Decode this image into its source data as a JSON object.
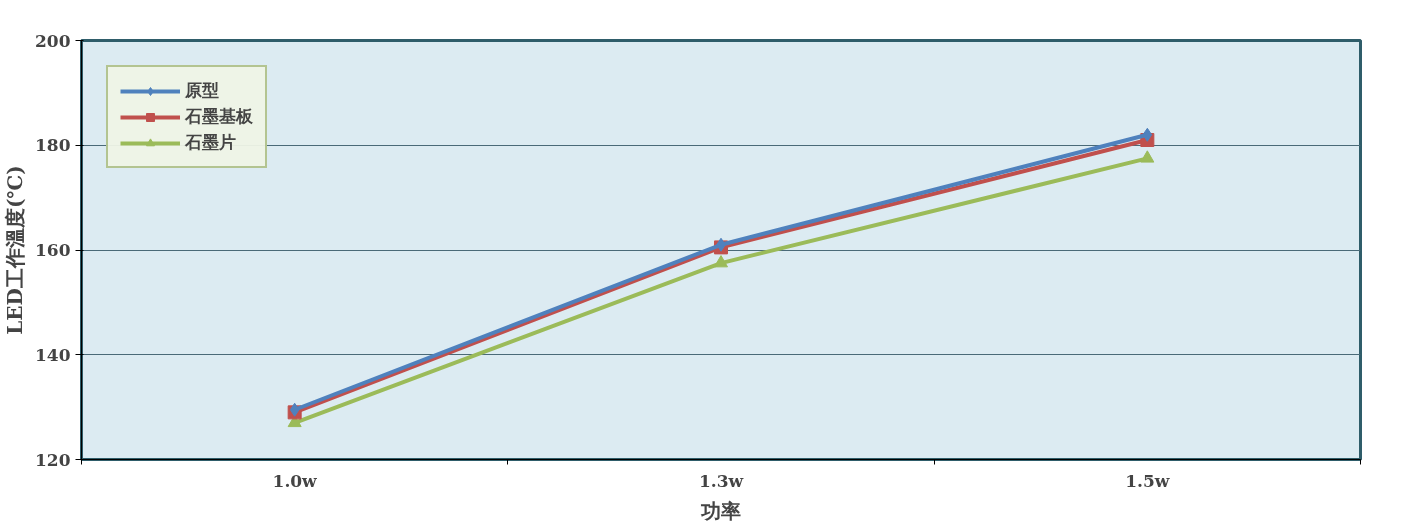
{
  "chart_data": {
    "type": "line",
    "xlabel": "功率",
    "ylabel": "LED工作溫度(℃)",
    "categories": [
      "1.0w",
      "1.3w",
      "1.5w"
    ],
    "ylim": [
      120,
      200
    ],
    "yticks": [
      120,
      140,
      160,
      180,
      200
    ],
    "grid": "y",
    "legend": "top left",
    "line_style": "solid",
    "series": [
      {
        "name": "原型",
        "color": "#4f81bd",
        "marker": "diamond",
        "values": [
          129.5,
          161,
          182
        ]
      },
      {
        "name": "石墨基板",
        "color": "#c0504d",
        "marker": "square",
        "values": [
          129,
          160.5,
          181
        ]
      },
      {
        "name": "石墨片",
        "color": "#9bbb59",
        "marker": "triangle",
        "values": [
          127,
          157.5,
          177.5
        ]
      }
    ]
  }
}
